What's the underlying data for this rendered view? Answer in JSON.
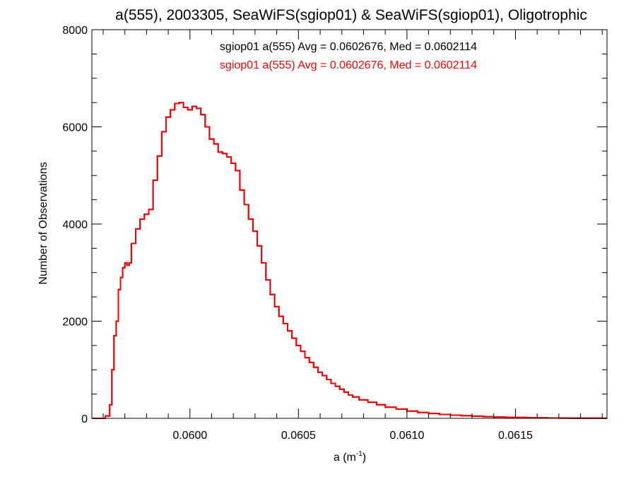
{
  "chart_data": {
    "type": "line",
    "title": "a(555), 2003305, SeaWiFS(sgiop01) & SeaWiFS(sgiop01), Oligotrophic",
    "xlabel": "a (m",
    "xlabel_sup": "-1",
    "xlabel_end": ")",
    "ylabel": "Number of Observations",
    "xlim": [
      0.059548,
      0.061922
    ],
    "ylim": [
      0,
      8000
    ],
    "x_ticks": [
      0.06,
      0.0605,
      0.061,
      0.0615
    ],
    "x_tick_labels": [
      "0.0600",
      "0.0605",
      "0.0610",
      "0.0615"
    ],
    "y_ticks": [
      0,
      2000,
      4000,
      6000,
      8000
    ],
    "y_tick_labels": [
      "0",
      "2000",
      "4000",
      "6000",
      "8000"
    ],
    "grid": false,
    "legend": [
      {
        "text": "sgiop01 a(555) Avg = 0.0602676, Med = 0.0602114",
        "color": "#000000"
      },
      {
        "text": "sgiop01 a(555) Avg = 0.0602676, Med = 0.0602114",
        "color": "#ff0000"
      }
    ],
    "series": [
      {
        "name": "sgiop01 a(555)",
        "color": "#000000",
        "x": [
          0.05955,
          0.0596,
          0.05961,
          0.05963,
          0.05964,
          0.05965,
          0.05966,
          0.05967,
          0.05968,
          0.05969,
          0.0597,
          0.05971,
          0.05972,
          0.05973,
          0.05975,
          0.05977,
          0.05979,
          0.05981,
          0.05983,
          0.05985,
          0.05987,
          0.05989,
          0.05991,
          0.05993,
          0.05995,
          0.05997,
          0.05999,
          0.06001,
          0.06003,
          0.06005,
          0.06007,
          0.06009,
          0.06011,
          0.06013,
          0.06015,
          0.06017,
          0.06019,
          0.06021,
          0.06023,
          0.06025,
          0.06027,
          0.06029,
          0.06031,
          0.06033,
          0.06035,
          0.06037,
          0.06039,
          0.06041,
          0.06043,
          0.06045,
          0.06047,
          0.06049,
          0.06051,
          0.06053,
          0.06055,
          0.06057,
          0.06059,
          0.06061,
          0.06063,
          0.06065,
          0.06067,
          0.06069,
          0.06071,
          0.06073,
          0.06075,
          0.06078,
          0.06082,
          0.06086,
          0.0609,
          0.06095,
          0.061,
          0.06105,
          0.0611,
          0.06115,
          0.0612,
          0.06125,
          0.0613,
          0.06135,
          0.0614,
          0.06145,
          0.0615,
          0.06155,
          0.0616,
          0.06165,
          0.0617,
          0.06175,
          0.0618,
          0.06185,
          0.0619
        ],
        "values": [
          0,
          0,
          50,
          280,
          1000,
          1700,
          2000,
          2650,
          2900,
          3100,
          3200,
          3150,
          3200,
          3600,
          3900,
          4100,
          4200,
          4300,
          4900,
          5400,
          5900,
          6200,
          6350,
          6480,
          6500,
          6400,
          6350,
          6420,
          6380,
          6250,
          6000,
          5750,
          5650,
          5480,
          5450,
          5380,
          5250,
          5100,
          4700,
          4400,
          4100,
          3850,
          3550,
          3200,
          2850,
          2550,
          2300,
          2100,
          1950,
          1800,
          1650,
          1500,
          1380,
          1250,
          1150,
          1050,
          950,
          880,
          800,
          720,
          660,
          600,
          540,
          480,
          440,
          380,
          330,
          280,
          230,
          190,
          150,
          120,
          100,
          80,
          65,
          55,
          45,
          35,
          28,
          22,
          18,
          14,
          11,
          8,
          6,
          5,
          4,
          3,
          2
        ]
      },
      {
        "name": "sgiop01 a(555)",
        "color": "#ff0000",
        "x": [
          0.05955,
          0.0596,
          0.05961,
          0.05963,
          0.05964,
          0.05965,
          0.05966,
          0.05967,
          0.05968,
          0.05969,
          0.0597,
          0.05971,
          0.05972,
          0.05973,
          0.05975,
          0.05977,
          0.05979,
          0.05981,
          0.05983,
          0.05985,
          0.05987,
          0.05989,
          0.05991,
          0.05993,
          0.05995,
          0.05997,
          0.05999,
          0.06001,
          0.06003,
          0.06005,
          0.06007,
          0.06009,
          0.06011,
          0.06013,
          0.06015,
          0.06017,
          0.06019,
          0.06021,
          0.06023,
          0.06025,
          0.06027,
          0.06029,
          0.06031,
          0.06033,
          0.06035,
          0.06037,
          0.06039,
          0.06041,
          0.06043,
          0.06045,
          0.06047,
          0.06049,
          0.06051,
          0.06053,
          0.06055,
          0.06057,
          0.06059,
          0.06061,
          0.06063,
          0.06065,
          0.06067,
          0.06069,
          0.06071,
          0.06073,
          0.06075,
          0.06078,
          0.06082,
          0.06086,
          0.0609,
          0.06095,
          0.061,
          0.06105,
          0.0611,
          0.06115,
          0.0612,
          0.06125,
          0.0613,
          0.06135,
          0.0614,
          0.06145,
          0.0615,
          0.06155,
          0.0616,
          0.06165,
          0.0617,
          0.06175,
          0.0618,
          0.06185,
          0.0619
        ],
        "values": [
          0,
          0,
          50,
          280,
          1000,
          1700,
          2000,
          2650,
          2900,
          3100,
          3200,
          3150,
          3200,
          3600,
          3900,
          4100,
          4200,
          4300,
          4900,
          5400,
          5900,
          6200,
          6350,
          6480,
          6500,
          6400,
          6350,
          6420,
          6380,
          6250,
          6000,
          5750,
          5650,
          5480,
          5450,
          5380,
          5250,
          5100,
          4700,
          4400,
          4100,
          3850,
          3550,
          3200,
          2850,
          2550,
          2300,
          2100,
          1950,
          1800,
          1650,
          1500,
          1380,
          1250,
          1150,
          1050,
          950,
          880,
          800,
          720,
          660,
          600,
          540,
          480,
          440,
          380,
          330,
          280,
          230,
          190,
          150,
          120,
          100,
          80,
          65,
          55,
          45,
          35,
          28,
          22,
          18,
          14,
          11,
          8,
          6,
          5,
          4,
          3,
          2
        ]
      }
    ]
  }
}
